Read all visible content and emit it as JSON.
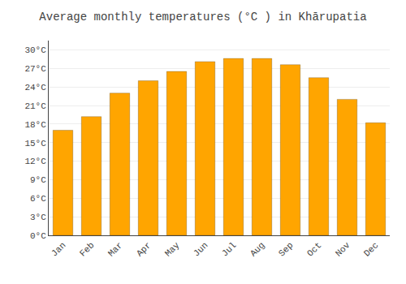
{
  "chart_data": {
    "type": "bar",
    "title": "Average monthly temperatures (°C ) in Khārupatia",
    "categories": [
      "Jan",
      "Feb",
      "Mar",
      "Apr",
      "May",
      "Jun",
      "Jul",
      "Aug",
      "Sep",
      "Oct",
      "Nov",
      "Dec"
    ],
    "values": [
      17.0,
      19.2,
      23.0,
      25.0,
      26.5,
      28.1,
      28.6,
      28.6,
      27.6,
      25.5,
      22.0,
      18.2
    ],
    "color": "#FFA500",
    "ylim": [
      0,
      31.5
    ],
    "yticks": [
      {
        "value": 0,
        "label": "0°C"
      },
      {
        "value": 3,
        "label": "3°C"
      },
      {
        "value": 6,
        "label": "6°C"
      },
      {
        "value": 9,
        "label": "9°C"
      },
      {
        "value": 12,
        "label": "12°C"
      },
      {
        "value": 15,
        "label": "15°C"
      },
      {
        "value": 18,
        "label": "18°C"
      },
      {
        "value": 21,
        "label": "21°C"
      },
      {
        "value": 24,
        "label": "24°C"
      },
      {
        "value": 27,
        "label": "27°C"
      },
      {
        "value": 30,
        "label": "30°C"
      }
    ],
    "grid": true
  }
}
